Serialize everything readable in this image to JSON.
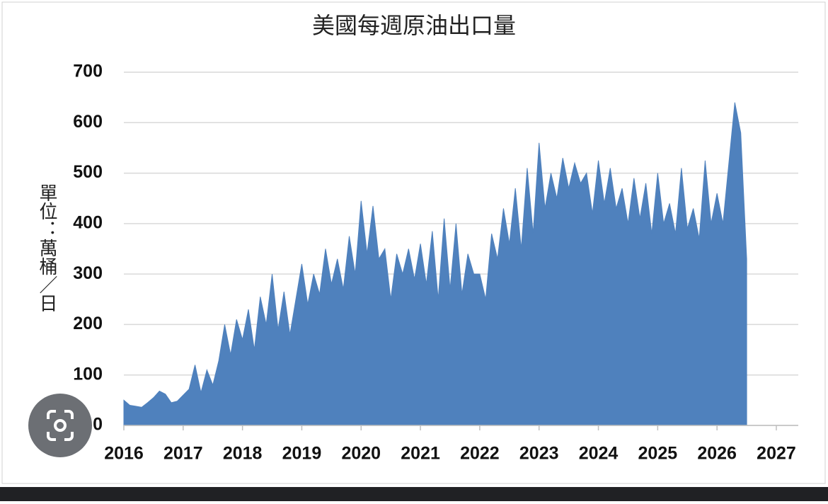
{
  "chart_data": {
    "type": "area",
    "title": "美國每週原油出口量",
    "y_label": "單位：萬桶／日",
    "color": "#4f81bd",
    "grid": true,
    "xlim": [
      2016,
      2027.37
    ],
    "xticks": [
      2016,
      2017,
      2018,
      2019,
      2020,
      2021,
      2022,
      2023,
      2024,
      2025,
      2026,
      2027
    ],
    "ylim": [
      0,
      700
    ],
    "yticks": [
      0,
      100,
      200,
      300,
      400,
      500,
      600,
      700
    ],
    "x": [
      2016.0,
      2016.1,
      2016.2,
      2016.3,
      2016.4,
      2016.5,
      2016.6,
      2016.7,
      2016.8,
      2016.9,
      2017.0,
      2017.1,
      2017.2,
      2017.3,
      2017.4,
      2017.5,
      2017.6,
      2017.7,
      2017.8,
      2017.9,
      2018.0,
      2018.1,
      2018.2,
      2018.3,
      2018.4,
      2018.5,
      2018.6,
      2018.7,
      2018.8,
      2018.9,
      2019.0,
      2019.1,
      2019.2,
      2019.3,
      2019.4,
      2019.5,
      2019.6,
      2019.7,
      2019.8,
      2019.9,
      2020.0,
      2020.1,
      2020.2,
      2020.3,
      2020.4,
      2020.5,
      2020.6,
      2020.7,
      2020.8,
      2020.9,
      2021.0,
      2021.1,
      2021.2,
      2021.3,
      2021.4,
      2021.5,
      2021.6,
      2021.7,
      2021.8,
      2021.9,
      2022.0,
      2022.1,
      2022.2,
      2022.3,
      2022.4,
      2022.5,
      2022.6,
      2022.7,
      2022.8,
      2022.9,
      2023.0,
      2023.1,
      2023.2,
      2023.3,
      2023.4,
      2023.5,
      2023.6,
      2023.7,
      2023.8,
      2023.9,
      2024.0,
      2024.1,
      2024.2,
      2024.3,
      2024.4,
      2024.5,
      2024.6,
      2024.7,
      2024.8,
      2024.9,
      2025.0,
      2025.1,
      2025.2,
      2025.3,
      2025.4,
      2025.5,
      2025.6,
      2025.7,
      2025.8,
      2025.9,
      2026.0,
      2026.1,
      2026.2,
      2026.3,
      2026.4,
      2026.5
    ],
    "values": [
      50,
      40,
      38,
      36,
      45,
      55,
      68,
      62,
      45,
      48,
      60,
      72,
      120,
      65,
      110,
      80,
      128,
      200,
      140,
      210,
      170,
      230,
      150,
      255,
      200,
      300,
      190,
      265,
      180,
      250,
      320,
      240,
      300,
      260,
      350,
      280,
      330,
      270,
      375,
      300,
      445,
      340,
      435,
      330,
      350,
      250,
      340,
      300,
      350,
      290,
      360,
      280,
      385,
      250,
      410,
      270,
      400,
      260,
      340,
      300,
      300,
      250,
      380,
      330,
      430,
      360,
      470,
      350,
      510,
      380,
      560,
      430,
      500,
      450,
      530,
      470,
      520,
      480,
      500,
      420,
      525,
      440,
      510,
      430,
      470,
      400,
      490,
      410,
      480,
      380,
      500,
      400,
      440,
      380,
      510,
      390,
      430,
      370,
      525,
      400,
      460,
      400,
      520,
      640,
      580,
      330
    ]
  }
}
